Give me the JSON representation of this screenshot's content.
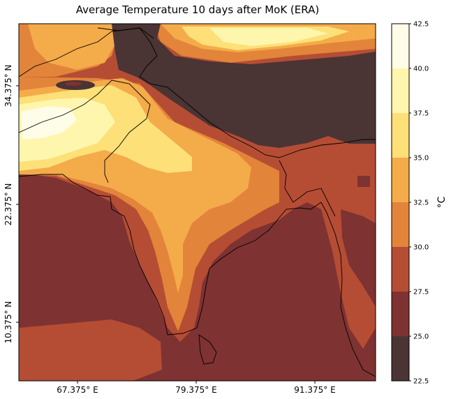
{
  "title": "Average Temperature 10 days after MoK (ERA)",
  "chart_data": {
    "type": "filled-contour-map",
    "title": "Average Temperature 10 days after MoK (ERA)",
    "x_ticks": [
      "67.375° E",
      "79.375° E",
      "91.375° E"
    ],
    "y_ticks": [
      "34.375° N",
      "22.375° N",
      "10.375° N"
    ],
    "colorbar": {
      "unit": "°C",
      "levels": [
        "22.5",
        "25.0",
        "27.5",
        "30.0",
        "32.5",
        "35.0",
        "37.5",
        "40.0",
        "42.5"
      ],
      "colors": [
        "#4a3434",
        "#7e3232",
        "#b54d34",
        "#e2843a",
        "#f4ab4a",
        "#fde078",
        "#fff6ad",
        "#fffde8"
      ]
    }
  }
}
